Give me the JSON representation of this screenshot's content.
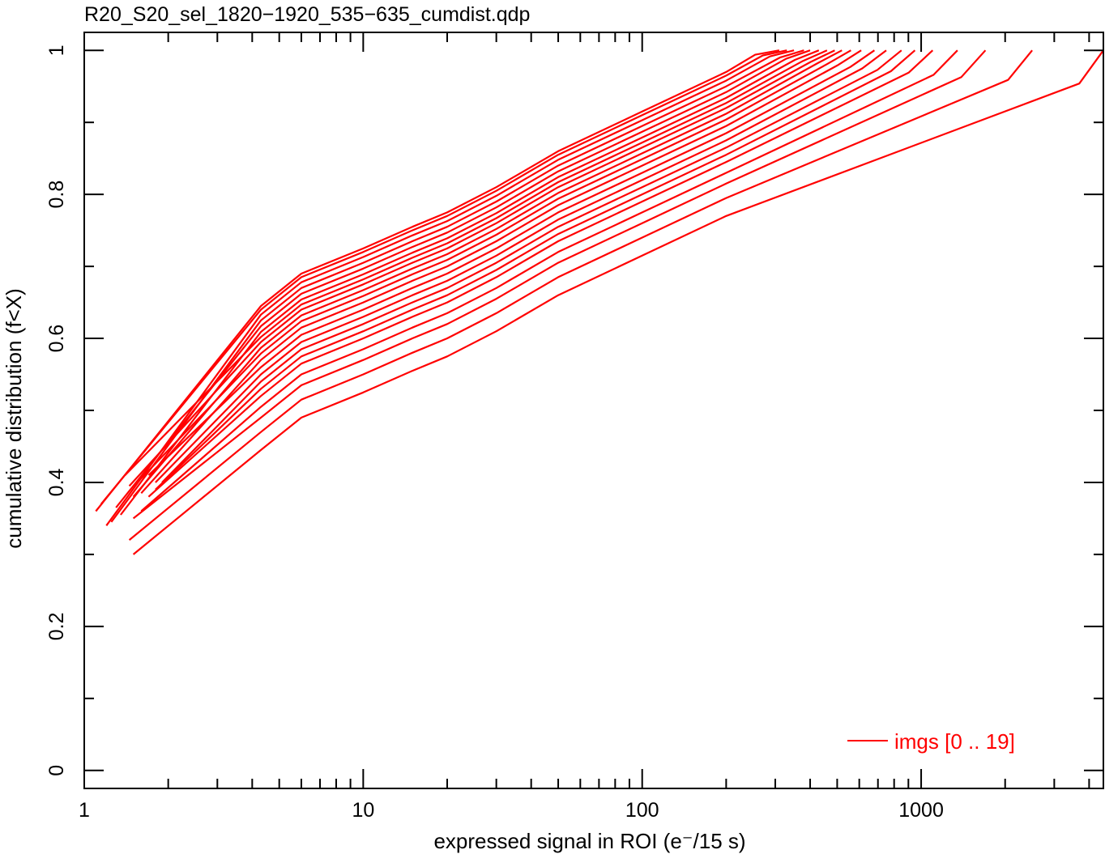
{
  "chart_data": {
    "type": "line",
    "title": "R20_S20_sel_1820−1920_535−635_cumdist.qdp",
    "xlabel": "expressed signal in ROI (e⁻/15 s)",
    "ylabel": "cumulative distribution (f<X)",
    "x_scale": "log",
    "xlim": [
      1,
      4500
    ],
    "ylim": [
      -0.025,
      1.025
    ],
    "x_ticks": [
      {
        "value": 1,
        "label": "1"
      },
      {
        "value": 10,
        "label": "10"
      },
      {
        "value": 100,
        "label": "100"
      },
      {
        "value": 1000,
        "label": "1000"
      }
    ],
    "y_ticks": [
      {
        "value": 0,
        "label": "0"
      },
      {
        "value": 0.2,
        "label": "0.2"
      },
      {
        "value": 0.4,
        "label": "0.4"
      },
      {
        "value": 0.6,
        "label": "0.6"
      },
      {
        "value": 0.8,
        "label": "0.8"
      },
      {
        "value": 1,
        "label": "1"
      }
    ],
    "grid": false,
    "legend": {
      "label": "imgs [0 .. 19]",
      "position": "bottom-right"
    },
    "line_color": "#ff0000",
    "series_template": {
      "x": [
        4.3,
        6,
        10,
        15,
        20,
        30,
        50,
        100,
        200
      ],
      "y": [
        0.645,
        0.69,
        0.725,
        0.755,
        0.775,
        0.81,
        0.86,
        0.915,
        0.97
      ]
    },
    "series": [
      {
        "x0": 1.1,
        "y0": 0.36,
        "d": 0.0,
        "xmax": 310
      },
      {
        "x0": 1.15,
        "y0": 0.37,
        "d": 0.005,
        "xmax": 330
      },
      {
        "x0": 1.2,
        "y0": 0.34,
        "d": 0.012,
        "xmax": 350
      },
      {
        "x0": 1.25,
        "y0": 0.345,
        "d": 0.02,
        "xmax": 380
      },
      {
        "x0": 1.3,
        "y0": 0.365,
        "d": 0.028,
        "xmax": 400
      },
      {
        "x0": 1.35,
        "y0": 0.355,
        "d": 0.036,
        "xmax": 430
      },
      {
        "x0": 1.4,
        "y0": 0.41,
        "d": 0.043,
        "xmax": 460
      },
      {
        "x0": 1.45,
        "y0": 0.395,
        "d": 0.05,
        "xmax": 490
      },
      {
        "x0": 1.5,
        "y0": 0.38,
        "d": 0.058,
        "xmax": 520
      },
      {
        "x0": 1.55,
        "y0": 0.4,
        "d": 0.066,
        "xmax": 560
      },
      {
        "x0": 1.6,
        "y0": 0.385,
        "d": 0.075,
        "xmax": 610
      },
      {
        "x0": 1.7,
        "y0": 0.41,
        "d": 0.085,
        "xmax": 680
      },
      {
        "x0": 1.8,
        "y0": 0.4,
        "d": 0.095,
        "xmax": 750
      },
      {
        "x0": 1.9,
        "y0": 0.4,
        "d": 0.105,
        "xmax": 850
      },
      {
        "x0": 1.8,
        "y0": 0.39,
        "d": 0.115,
        "xmax": 950
      },
      {
        "x0": 1.7,
        "y0": 0.38,
        "d": 0.125,
        "xmax": 1100
      },
      {
        "x0": 1.6,
        "y0": 0.36,
        "d": 0.14,
        "xmax": 1350
      },
      {
        "x0": 1.5,
        "y0": 0.35,
        "d": 0.155,
        "xmax": 1700
      },
      {
        "x0": 1.45,
        "y0": 0.32,
        "d": 0.175,
        "xmax": 2500
      },
      {
        "x0": 1.5,
        "y0": 0.3,
        "d": 0.2,
        "xmax": 4500
      }
    ]
  }
}
